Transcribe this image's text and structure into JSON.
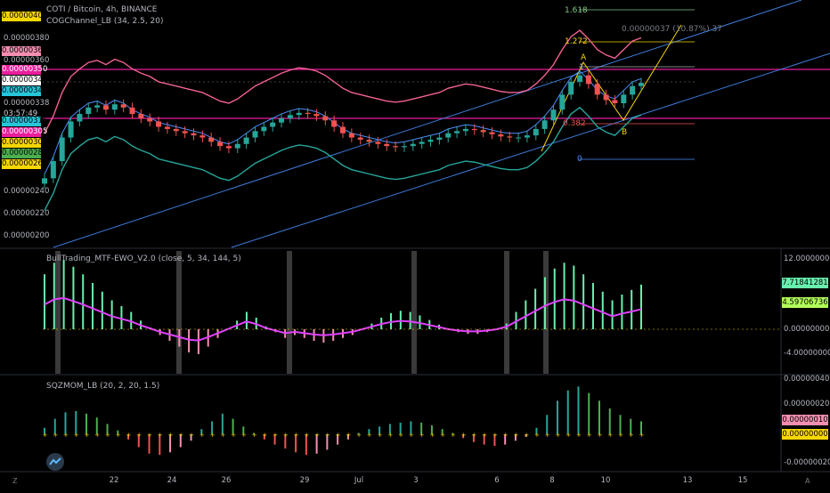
{
  "header": {
    "title": "COTI / Bitcoin, 4h, BINANCE",
    "indicator": "COGChannel_LB (34, 2.5, 20)"
  },
  "price_axis": {
    "labels": [
      "0.00000380",
      "0.00000360",
      "0.00000338",
      "0.00000240",
      "0.00000220",
      "0.00000200"
    ],
    "timer": "03:57:49",
    "tags": [
      {
        "text": "0.00000400",
        "color": "#f7d700"
      },
      {
        "text": "0.00000368",
        "color": "#f48fb1"
      },
      {
        "text": "0.00000350",
        "color": "#e91e9c"
      },
      {
        "text": "0.00000341",
        "color": "#ffffff"
      },
      {
        "text": "0.00000341",
        "color": "#26c6da"
      },
      {
        "text": "0.00000315",
        "color": "#26c6da"
      },
      {
        "text": "0.00000305",
        "color": "#e91e9c"
      },
      {
        "text": "0.00000300",
        "color": "#f7d700"
      },
      {
        "text": "0.00000283",
        "color": "#4caf50"
      },
      {
        "text": "0.00000264",
        "color": "#f7d700"
      }
    ]
  },
  "fib": {
    "levels": [
      "1.618",
      "1.272",
      "1",
      "0.382",
      "0"
    ],
    "points": [
      "A",
      "B"
    ],
    "measure": "0.00000037 (10.87%) 37"
  },
  "ewo": {
    "legend": "BullTrading_MTF-EWO_V2.0 (close, 5, 34, 144, 5)",
    "axis_labels": [
      "12.00000000",
      "0.00000000",
      "-4.00000000"
    ],
    "tags": [
      {
        "text": "7.71841281",
        "color": "#69f0ae"
      },
      {
        "text": "4.59706736",
        "color": "#b2ff59"
      }
    ]
  },
  "sqz": {
    "legend": "SQZMOM_LB (20, 2, 20, 1.5)",
    "axis_labels": [
      "0.00000040",
      "0.00000020",
      "-0.00000020"
    ],
    "tags": [
      {
        "text": "0.00000010",
        "color": "#f48fb1"
      },
      {
        "text": "0.00000000",
        "color": "#f7d700"
      }
    ]
  },
  "time_axis": {
    "labels": [
      "22",
      "24",
      "26",
      "29",
      "Jul",
      "3",
      "6",
      "8",
      "10",
      "13",
      "15"
    ]
  },
  "chart_data": {
    "type": "line",
    "title": "COTI / Bitcoin, 4h, BINANCE",
    "ylim": [
      1.9e-06,
      4.1e-06
    ],
    "close": [
      2.52e-06,
      2.68e-06,
      2.9e-06,
      3.05e-06,
      3.12e-06,
      3.18e-06,
      3.2e-06,
      3.16e-06,
      3.21e-06,
      3.18e-06,
      3.12e-06,
      3.08e-06,
      3.05e-06,
      3e-06,
      2.98e-06,
      2.96e-06,
      2.94e-06,
      2.92e-06,
      2.9e-06,
      2.86e-06,
      2.82e-06,
      2.8e-06,
      2.84e-06,
      2.9e-06,
      2.96e-06,
      3e-06,
      3.04e-06,
      3.08e-06,
      3.11e-06,
      3.13e-06,
      3.12e-06,
      3.1e-06,
      3.06e-06,
      3e-06,
      2.94e-06,
      2.9e-06,
      2.88e-06,
      2.86e-06,
      2.84e-06,
      2.82e-06,
      2.81e-06,
      2.82e-06,
      2.84e-06,
      2.86e-06,
      2.88e-06,
      2.9e-06,
      2.94e-06,
      2.96e-06,
      2.98e-06,
      2.97e-06,
      2.95e-06,
      2.93e-06,
      2.91e-06,
      2.9e-06,
      2.9e-06,
      2.92e-06,
      2.98e-06,
      3.06e-06,
      3.16e-06,
      3.3e-06,
      3.42e-06,
      3.48e-06,
      3.4e-06,
      3.3e-06,
      3.25e-06,
      3.22e-06,
      3.3e-06,
      3.38e-06,
      3.41e-06
    ],
    "ewo": [
      9.5,
      11.5,
      12,
      10.8,
      9.5,
      8,
      6.5,
      5,
      4,
      3,
      1.5,
      0.3,
      -1,
      -2,
      -3,
      -4,
      -4.3,
      -3,
      -1.5,
      0,
      1.5,
      3,
      2,
      0.5,
      -0.5,
      -1.5,
      -1,
      -1.5,
      -2,
      -2.3,
      -2,
      -1.5,
      -1,
      0,
      1,
      2,
      2.8,
      3.2,
      3,
      2.4,
      1.6,
      0.8,
      0,
      -0.5,
      -0.8,
      -0.8,
      -0.5,
      0,
      1,
      3,
      5,
      7,
      9,
      10.5,
      11.5,
      11,
      9.5,
      8,
      6.5,
      5,
      6,
      6.8,
      7.72
    ],
    "sqz": [
      5e-08,
      1.2e-07,
      1.7e-07,
      1.8e-07,
      1.6e-07,
      1.3e-07,
      8e-08,
      3e-08,
      -4e-08,
      -1e-07,
      -1.5e-07,
      -1.6e-07,
      -1.4e-07,
      -1e-07,
      -5e-08,
      4e-08,
      1e-07,
      1.6e-07,
      1.2e-07,
      6e-08,
      1e-08,
      -4e-08,
      -8e-08,
      -1.1e-07,
      -1.4e-07,
      -1.6e-07,
      -1.5e-07,
      -1.2e-07,
      -8e-08,
      -4e-08,
      1e-08,
      4e-08,
      6e-08,
      8e-08,
      9e-08,
      1e-07,
      9e-08,
      7e-08,
      4e-08,
      1e-08,
      -3e-08,
      -6e-08,
      -8e-08,
      -9e-08,
      -8e-08,
      -5e-08,
      -2e-08,
      5e-08,
      1.5e-07,
      2.6e-07,
      3.4e-07,
      3.7e-07,
      3.2e-07,
      2.6e-07,
      2e-07,
      1.5e-07,
      1.2e-07,
      1e-07
    ]
  }
}
